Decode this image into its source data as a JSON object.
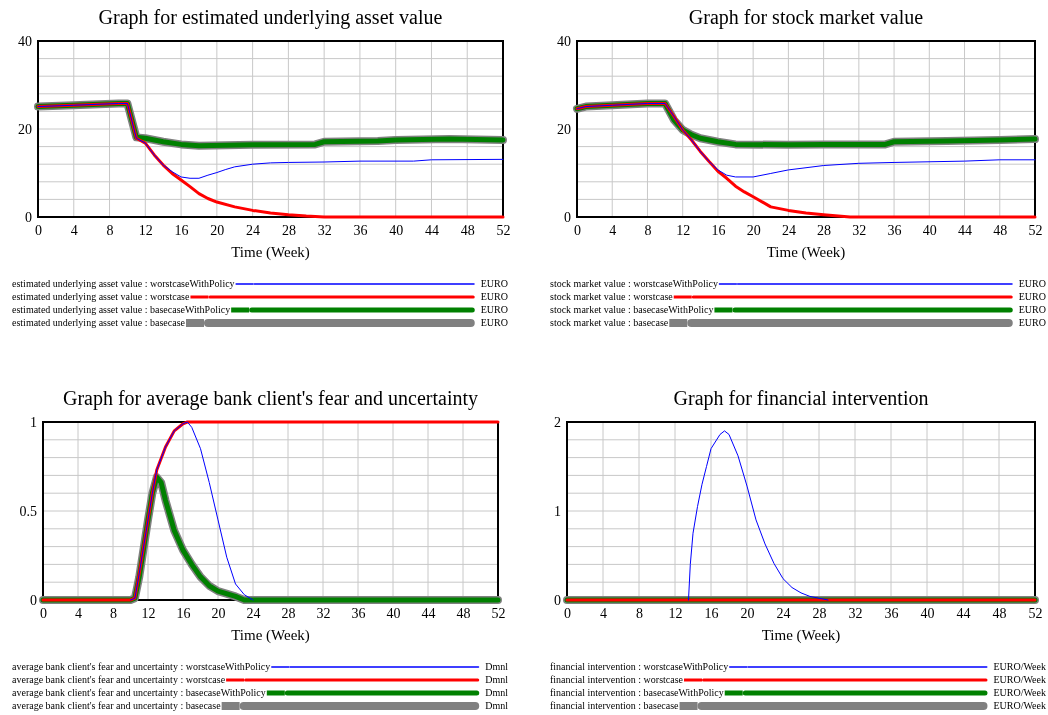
{
  "chart_data": [
    {
      "type": "line",
      "title": "Graph for estimated underlying asset value",
      "xlabel": "Time (Week)",
      "annotations": [
        "EURO",
        "EURO",
        "EURO",
        "EURO"
      ],
      "grid": true,
      "legend": "bottom",
      "marker": "none",
      "line_style": "solid",
      "xlim": [
        0,
        52
      ],
      "xticks": [
        0,
        4,
        8,
        12,
        16,
        20,
        24,
        28,
        32,
        36,
        40,
        44,
        48,
        52
      ],
      "ylim": [
        0,
        40
      ],
      "yticks": [
        0,
        {
          "value": 4,
          "label": null
        },
        {
          "value": 8,
          "label": null
        },
        {
          "value": 12,
          "label": null
        },
        {
          "value": 16,
          "label": null
        },
        20,
        {
          "value": 24,
          "label": null
        },
        {
          "value": 28,
          "label": null
        },
        {
          "value": 32,
          "label": null
        },
        {
          "value": 36,
          "label": null
        },
        40
      ],
      "series": [
        {
          "name": "estimated underlying asset value : basecase",
          "color": "#808080",
          "x": [
            0,
            4,
            9,
            10,
            11,
            12,
            14,
            16,
            18,
            24,
            31,
            32,
            38,
            40,
            46,
            52
          ],
          "values": [
            25.1,
            25.4,
            25.8,
            25.8,
            18.1,
            17.9,
            17.1,
            16.5,
            16.2,
            16.4,
            16.5,
            17.1,
            17.3,
            17.5,
            17.7,
            17.5
          ]
        },
        {
          "name": "estimated underlying asset value : basecaseWithPolicy",
          "color": "#008000",
          "x": [
            0,
            4,
            9,
            10,
            11,
            12,
            14,
            16,
            18,
            24,
            31,
            32,
            38,
            40,
            46,
            52
          ],
          "values": [
            25.1,
            25.4,
            25.8,
            25.8,
            18.1,
            17.9,
            17.1,
            16.5,
            16.2,
            16.4,
            16.5,
            17.1,
            17.3,
            17.5,
            17.7,
            17.5
          ]
        },
        {
          "name": "estimated underlying asset value : worstcase",
          "color": "#ff0000",
          "x": [
            0,
            4,
            9,
            10,
            11,
            12,
            13,
            14,
            15,
            16,
            17,
            18,
            19,
            20,
            22,
            24,
            26,
            28,
            30,
            32,
            52
          ],
          "values": [
            25.1,
            25.4,
            25.8,
            25.8,
            17.9,
            16.8,
            14.1,
            11.8,
            9.9,
            8.4,
            6.9,
            5.3,
            4.2,
            3.4,
            2.3,
            1.5,
            0.9,
            0.5,
            0.2,
            0,
            0
          ]
        },
        {
          "name": "estimated underlying asset value : worstcaseWithPolicy",
          "color": "#0000ff",
          "x": [
            0,
            4,
            9,
            10,
            11,
            12,
            13,
            14,
            15,
            16,
            17,
            18,
            19,
            20,
            21,
            22,
            24,
            26,
            28,
            32,
            36,
            42,
            44,
            52
          ],
          "values": [
            25.1,
            25.4,
            25.8,
            25.8,
            17.9,
            16.8,
            14.1,
            11.8,
            10.3,
            9.1,
            8.8,
            8.8,
            9.5,
            10.1,
            10.8,
            11.4,
            12,
            12.3,
            12.4,
            12.5,
            12.7,
            12.7,
            13,
            13.1
          ]
        }
      ]
    },
    {
      "type": "line",
      "title": "Graph for stock market value",
      "xlabel": "Time (Week)",
      "annotations": [
        "EURO",
        "EURO",
        "EURO",
        "EURO"
      ],
      "grid": true,
      "legend": "bottom",
      "marker": "none",
      "line_style": "solid",
      "xlim": [
        0,
        52
      ],
      "xticks": [
        0,
        4,
        8,
        12,
        16,
        20,
        24,
        28,
        32,
        36,
        40,
        44,
        48,
        52
      ],
      "ylim": [
        0,
        40
      ],
      "yticks": [
        0,
        {
          "value": 4,
          "label": null
        },
        {
          "value": 8,
          "label": null
        },
        {
          "value": 12,
          "label": null
        },
        {
          "value": 16,
          "label": null
        },
        20,
        {
          "value": 24,
          "label": null
        },
        {
          "value": 28,
          "label": null
        },
        {
          "value": 32,
          "label": null
        },
        {
          "value": 36,
          "label": null
        },
        40
      ],
      "series": [
        {
          "name": "stock market value : basecase",
          "color": "#808080",
          "x": [
            0,
            1,
            4,
            8,
            10,
            11,
            12,
            13,
            14,
            16,
            18,
            24,
            28,
            35,
            36,
            42,
            48,
            52
          ],
          "values": [
            24.6,
            25.1,
            25.4,
            25.8,
            25.8,
            22.1,
            19.8,
            18.7,
            17.9,
            17.1,
            16.5,
            16.4,
            16.5,
            16.5,
            17.1,
            17.3,
            17.5,
            17.7
          ]
        },
        {
          "name": "stock market value : basecaseWithPolicy",
          "color": "#008000",
          "x": [
            0,
            1,
            4,
            8,
            10,
            11,
            12,
            13,
            14,
            16,
            18,
            24,
            28,
            35,
            36,
            42,
            48,
            52
          ],
          "values": [
            24.6,
            25.1,
            25.4,
            25.8,
            25.8,
            22.1,
            19.8,
            18.7,
            17.9,
            17.1,
            16.5,
            16.4,
            16.5,
            16.5,
            17.1,
            17.3,
            17.5,
            17.7
          ]
        },
        {
          "name": "stock market value : worstcase",
          "color": "#ff0000",
          "x": [
            0,
            1,
            4,
            8,
            10,
            11,
            12,
            13,
            14,
            15,
            16,
            17,
            18,
            19,
            20,
            22,
            24,
            26,
            28,
            31,
            52
          ],
          "values": [
            24.6,
            25.1,
            25.4,
            25.8,
            25.8,
            22.9,
            19.8,
            17.5,
            14.9,
            12.6,
            10.4,
            8.8,
            7,
            5.7,
            4.6,
            2.3,
            1.5,
            0.9,
            0.5,
            0,
            0
          ]
        },
        {
          "name": "stock market value : worstcaseWithPolicy",
          "color": "#0000ff",
          "x": [
            0,
            1,
            4,
            8,
            10,
            11,
            12,
            13,
            14,
            15,
            16,
            17,
            18,
            20,
            22,
            24,
            26,
            28,
            32,
            36,
            44,
            48,
            52
          ],
          "values": [
            24.6,
            25.1,
            25.4,
            25.8,
            25.8,
            22.9,
            19.8,
            17.5,
            14.9,
            12.6,
            10.7,
            9.5,
            9.1,
            9.1,
            9.9,
            10.7,
            11.2,
            11.7,
            12.2,
            12.4,
            12.7,
            13,
            13
          ]
        }
      ]
    },
    {
      "type": "line",
      "title": "Graph for average bank client's fear and uncertainty",
      "xlabel": "Time (Week)",
      "annotations": [
        "Dmnl",
        "Dmnl",
        "Dmnl",
        "Dmnl"
      ],
      "grid": true,
      "legend": "bottom",
      "marker": "none",
      "line_style": "solid",
      "xlim": [
        0,
        52
      ],
      "xticks": [
        0,
        4,
        8,
        12,
        16,
        20,
        24,
        28,
        32,
        36,
        40,
        44,
        48,
        52
      ],
      "ylim": [
        0,
        1
      ],
      "yticks": [
        0,
        {
          "value": 0.1,
          "label": null
        },
        {
          "value": 0.2,
          "label": null
        },
        {
          "value": 0.3,
          "label": null
        },
        {
          "value": 0.4,
          "label": null
        },
        0.5,
        {
          "value": 0.6,
          "label": null
        },
        {
          "value": 0.7,
          "label": null
        },
        {
          "value": 0.8,
          "label": null
        },
        {
          "value": 0.9,
          "label": null
        },
        1
      ],
      "series": [
        {
          "name": "average bank client's fear and uncertainty : basecase",
          "color": "#808080",
          "x": [
            0,
            10,
            10.5,
            11,
            12,
            12.5,
            13,
            13.5,
            14,
            15,
            16,
            17,
            18,
            19,
            20,
            22,
            23,
            52
          ],
          "values": [
            0,
            0,
            0.01,
            0.13,
            0.45,
            0.6,
            0.69,
            0.66,
            0.56,
            0.39,
            0.28,
            0.2,
            0.13,
            0.08,
            0.05,
            0.02,
            0,
            0
          ]
        },
        {
          "name": "average bank client's fear and uncertainty : basecaseWithPolicy",
          "color": "#008000",
          "x": [
            0,
            10,
            10.5,
            11,
            12,
            12.5,
            13,
            13.5,
            14,
            15,
            16,
            17,
            18,
            19,
            20,
            22,
            23,
            52
          ],
          "values": [
            0,
            0,
            0.01,
            0.13,
            0.45,
            0.6,
            0.69,
            0.66,
            0.56,
            0.39,
            0.28,
            0.2,
            0.13,
            0.08,
            0.05,
            0.02,
            0,
            0
          ]
        },
        {
          "name": "average bank client's fear and uncertainty : worstcase",
          "color": "#ff0000",
          "x": [
            0,
            10,
            10.5,
            11,
            12,
            12.5,
            13,
            14,
            15,
            16,
            16.5,
            52
          ],
          "values": [
            0,
            0,
            0.01,
            0.15,
            0.45,
            0.6,
            0.73,
            0.86,
            0.95,
            0.99,
            1,
            1
          ]
        },
        {
          "name": "average bank client's fear and uncertainty : worstcaseWithPolicy",
          "color": "#0000ff",
          "x": [
            10,
            10.5,
            11,
            12,
            12.5,
            13,
            14,
            15,
            16,
            16.5,
            17,
            18,
            19,
            20,
            21,
            22,
            23,
            24
          ],
          "values": [
            0,
            0.01,
            0.15,
            0.45,
            0.6,
            0.73,
            0.86,
            0.95,
            0.99,
            1,
            0.97,
            0.85,
            0.66,
            0.45,
            0.24,
            0.09,
            0.03,
            0
          ]
        }
      ]
    },
    {
      "type": "line",
      "title": "Graph for financial intervention",
      "xlabel": "Time (Week)",
      "annotations": [
        "EURO/Week",
        "EURO/Week",
        "EURO/Week",
        "EURO/Week"
      ],
      "grid": true,
      "legend": "bottom",
      "marker": "none",
      "line_style": "solid",
      "xlim": [
        0,
        52
      ],
      "xticks": [
        0,
        4,
        8,
        12,
        16,
        20,
        24,
        28,
        32,
        36,
        40,
        44,
        48,
        52
      ],
      "ylim": [
        0,
        2
      ],
      "yticks": [
        0,
        {
          "value": 0.2,
          "label": null
        },
        {
          "value": 0.4,
          "label": null
        },
        {
          "value": 0.6,
          "label": null
        },
        {
          "value": 0.8,
          "label": null
        },
        1,
        {
          "value": 1.2,
          "label": null
        },
        {
          "value": 1.4,
          "label": null
        },
        {
          "value": 1.6,
          "label": null
        },
        {
          "value": 1.8,
          "label": null
        },
        2
      ],
      "series": [
        {
          "name": "financial intervention : basecase",
          "color": "#808080",
          "x": [
            0,
            52
          ],
          "values": [
            0,
            0
          ]
        },
        {
          "name": "financial intervention : basecaseWithPolicy",
          "color": "#008000",
          "x": [
            0,
            52
          ],
          "values": [
            0,
            0
          ]
        },
        {
          "name": "financial intervention : worstcase",
          "color": "#ff0000",
          "x": [
            0,
            52
          ],
          "values": [
            0,
            0
          ]
        },
        {
          "name": "financial intervention : worstcaseWithPolicy",
          "color": "#0000ff",
          "x": [
            13.5,
            13.7,
            14,
            14.5,
            15,
            15.5,
            16,
            17,
            17.5,
            18,
            19,
            20,
            21,
            22,
            23,
            24,
            25,
            26,
            27,
            28,
            29
          ],
          "values": [
            0,
            0.4,
            0.75,
            1.05,
            1.3,
            1.5,
            1.7,
            1.86,
            1.9,
            1.86,
            1.62,
            1.28,
            0.9,
            0.63,
            0.41,
            0.24,
            0.14,
            0.08,
            0.04,
            0.02,
            0
          ]
        }
      ]
    }
  ]
}
